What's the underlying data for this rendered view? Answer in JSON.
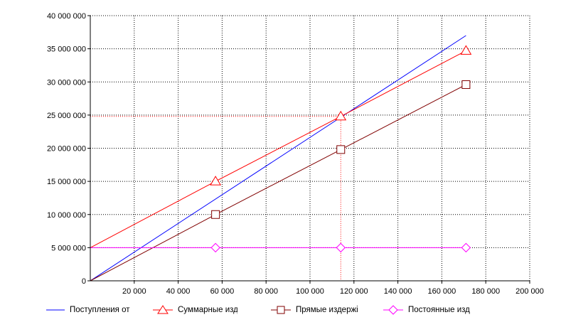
{
  "chart_data": {
    "type": "line",
    "x_ticks": [
      "20 000",
      "40 000",
      "60 000",
      "80 000",
      "100 000",
      "120 000",
      "140 000",
      "160 000",
      "180 000",
      "200 000"
    ],
    "x_tick_values": [
      20000,
      40000,
      60000,
      80000,
      100000,
      120000,
      140000,
      160000,
      180000,
      200000
    ],
    "y_ticks": [
      "0",
      "5 000 000",
      "10 000 000",
      "15 000 000",
      "20 000 000",
      "25 000 000",
      "30 000 000",
      "35 000 000",
      "40 000 000"
    ],
    "y_tick_values": [
      0,
      5000000,
      10000000,
      15000000,
      20000000,
      25000000,
      30000000,
      35000000,
      40000000
    ],
    "xlim": [
      0,
      200000
    ],
    "ylim": [
      0,
      40000000
    ],
    "grid": true,
    "legend_position": "bottom",
    "series": [
      {
        "name": "Поступления от",
        "color": "#0000ff",
        "marker": "none",
        "points": [
          [
            0,
            0
          ],
          [
            171000,
            37000000
          ]
        ]
      },
      {
        "name": "Суммарные изд",
        "color": "#ff0000",
        "marker": "triangle",
        "points": [
          [
            0,
            5000000
          ],
          [
            57000,
            15000000
          ],
          [
            114000,
            24800000
          ],
          [
            171000,
            34700000
          ]
        ]
      },
      {
        "name": "Прямые издержi",
        "color": "#800000",
        "marker": "square",
        "points": [
          [
            0,
            0
          ],
          [
            57000,
            10000000
          ],
          [
            114000,
            19800000
          ],
          [
            171000,
            29600000
          ]
        ]
      },
      {
        "name": "Постоянные изд",
        "color": "#ff00ff",
        "marker": "diamond",
        "points": [
          [
            0,
            5000000
          ],
          [
            57000,
            5000000
          ],
          [
            114000,
            5000000
          ],
          [
            171000,
            5000000
          ]
        ]
      }
    ],
    "reference_lines": {
      "color": "#ff0000",
      "x": 114000,
      "y": 24800000
    }
  }
}
